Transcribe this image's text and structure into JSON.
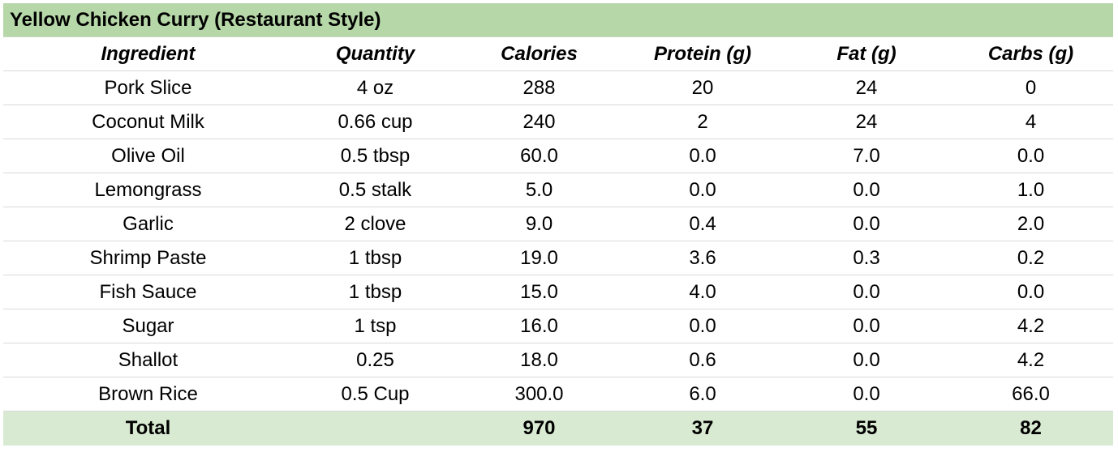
{
  "title": "Yellow Chicken Curry (Restaurant Style)",
  "columns": [
    "Ingredient",
    "Quantity",
    "Calories",
    "Protein (g)",
    "Fat (g)",
    "Carbs (g)"
  ],
  "rows": [
    [
      "Pork Slice",
      "4 oz",
      "288",
      "20",
      "24",
      "0"
    ],
    [
      "Coconut Milk",
      "0.66 cup",
      "240",
      "2",
      "24",
      "4"
    ],
    [
      "Olive Oil",
      "0.5 tbsp",
      "60.0",
      "0.0",
      "7.0",
      "0.0"
    ],
    [
      "Lemongrass",
      "0.5 stalk",
      "5.0",
      "0.0",
      "0.0",
      "1.0"
    ],
    [
      "Garlic",
      "2 clove",
      "9.0",
      "0.4",
      "0.0",
      "2.0"
    ],
    [
      "Shrimp Paste",
      "1 tbsp",
      "19.0",
      "3.6",
      "0.3",
      "0.2"
    ],
    [
      "Fish Sauce",
      "1 tbsp",
      "15.0",
      "4.0",
      "0.0",
      "0.0"
    ],
    [
      "Sugar",
      "1 tsp",
      "16.0",
      "0.0",
      "0.0",
      "4.2"
    ],
    [
      "Shallot",
      "0.25",
      "18.0",
      "0.6",
      "0.0",
      "4.2"
    ],
    [
      "Brown Rice",
      "0.5 Cup",
      "300.0",
      "6.0",
      "0.0",
      "66.0"
    ]
  ],
  "total": [
    "Total",
    "",
    "970",
    "37",
    "55",
    "82"
  ],
  "colors": {
    "title_background": "#b6d7a8",
    "total_background": "#d9ead3",
    "row_divider": "#d9d9d9"
  }
}
